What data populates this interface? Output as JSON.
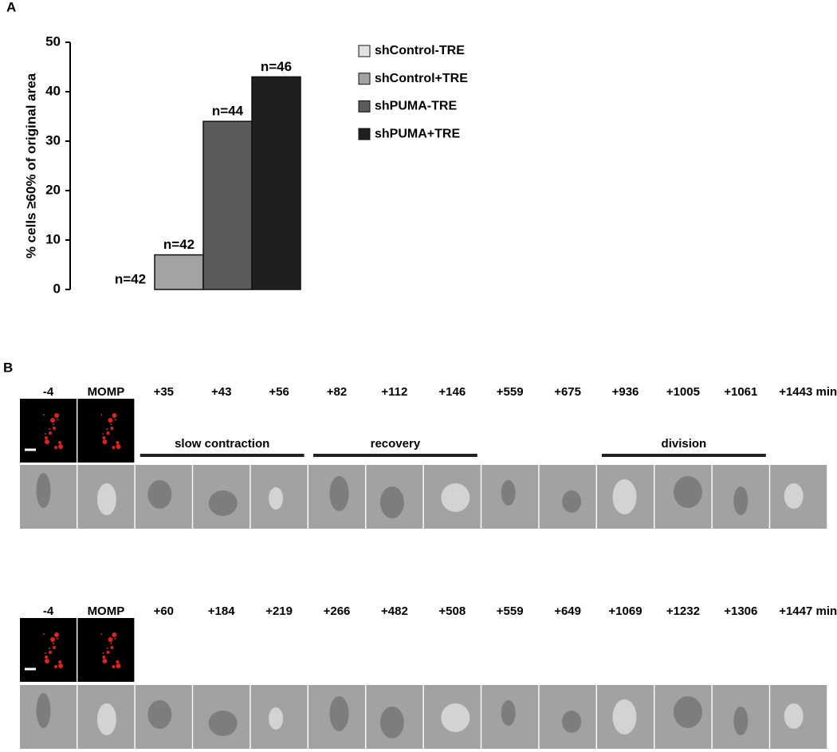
{
  "panel_labels": [
    "A",
    "B"
  ],
  "chart_data": {
    "type": "bar",
    "y_label": "% cells ≥60% of original area",
    "categories": [
      null
    ],
    "series": [
      {
        "name": "shControl-TRE",
        "color": "#e2e2e2",
        "values": [
          0
        ]
      },
      {
        "name": "shControl+TRE",
        "color": "#a3a3a3",
        "values": [
          7
        ]
      },
      {
        "name": "shPUMA-TRE",
        "color": "#5b5b5b",
        "values": [
          34
        ]
      },
      {
        "name": "shPUMA+TRE",
        "color": "#1f1f1f",
        "values": [
          43
        ]
      }
    ],
    "annotations": [
      "n=42",
      "n=42",
      "n=44",
      "n=46"
    ],
    "ylim": [
      0,
      50
    ],
    "yticks": [
      0,
      10,
      20,
      30,
      40,
      50
    ],
    "legend": "right"
  },
  "panel_b": {
    "rows": [
      {
        "times": [
          "-4",
          "MOMP",
          "+35",
          "+43",
          "+56",
          "+82",
          "+112",
          "+146",
          "+559",
          "+675",
          "+936",
          "+1005",
          "+1061",
          "+1443 min"
        ],
        "phases": [
          {
            "label": "slow contraction",
            "from": 2,
            "to": 4
          },
          {
            "label": "recovery",
            "from": 5,
            "to": 7
          },
          {
            "label": "division",
            "from": 10,
            "to": 12
          }
        ]
      },
      {
        "times": [
          "-4",
          "MOMP",
          "+60",
          "+184",
          "+219",
          "+266",
          "+482",
          "+508",
          "+559",
          "+649",
          "+1069",
          "+1232",
          "+1306",
          "+1447 min"
        ]
      }
    ]
  }
}
